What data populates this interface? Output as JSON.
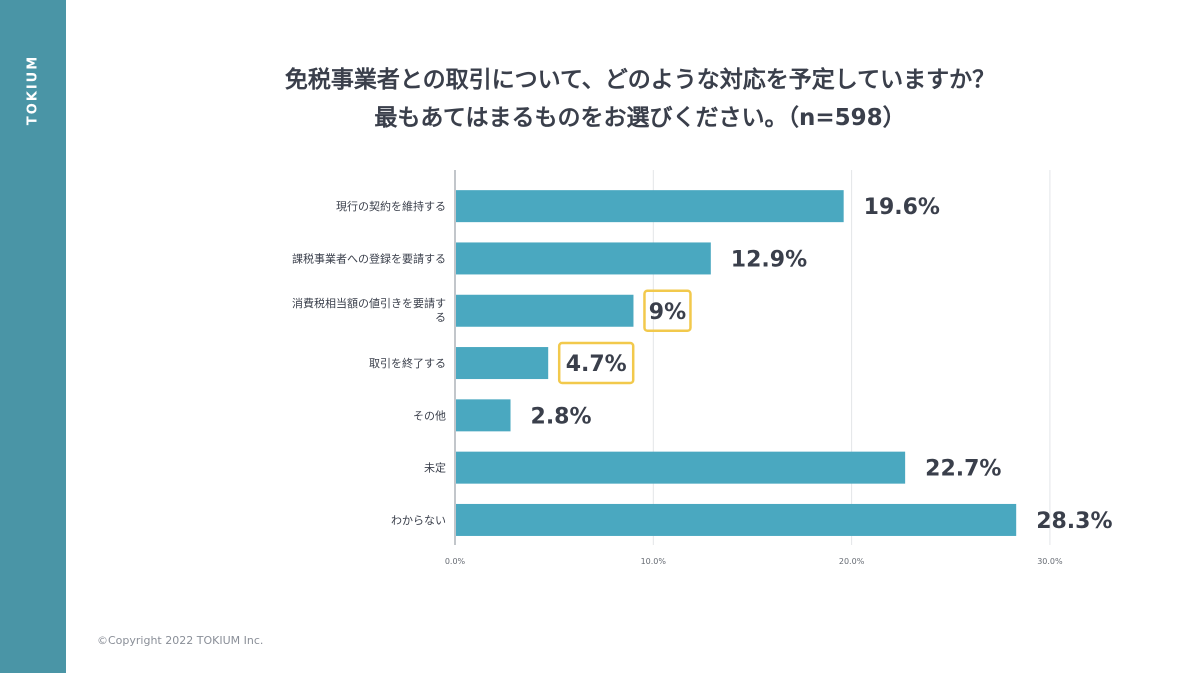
{
  "brand": "TOKIUM",
  "title": {
    "line1": "免税事業者との取引について、どのような対応を予定していますか？",
    "line2": "最もあてはまるものをお選びください。（n=598）"
  },
  "copyright": "©Copyright 2022 TOKIUM Inc.",
  "colors": {
    "bar": "#4aa8c0",
    "highlight_box": "#f2c94c",
    "sidebar": "#4a95a6"
  },
  "chart_data": {
    "type": "bar",
    "orientation": "horizontal",
    "categories": [
      "現行の契約を維持する",
      "課税事業者への登録を要請する",
      "消費税相当額の値引きを要請する",
      "取引を終了する",
      "その他",
      "未定",
      "わからない"
    ],
    "values": [
      19.6,
      12.9,
      9,
      4.7,
      2.8,
      22.7,
      28.3
    ],
    "value_labels": [
      "19.6%",
      "12.9%",
      "9%",
      "4.7%",
      "2.8%",
      "22.7%",
      "28.3%"
    ],
    "highlighted": [
      false,
      false,
      true,
      true,
      false,
      false,
      false
    ],
    "xlim": [
      0,
      30
    ],
    "xticks": [
      0,
      10,
      20,
      30
    ],
    "xtick_labels": [
      "0.0%",
      "10.0%",
      "20.0%",
      "30.0%"
    ],
    "grid": true
  }
}
